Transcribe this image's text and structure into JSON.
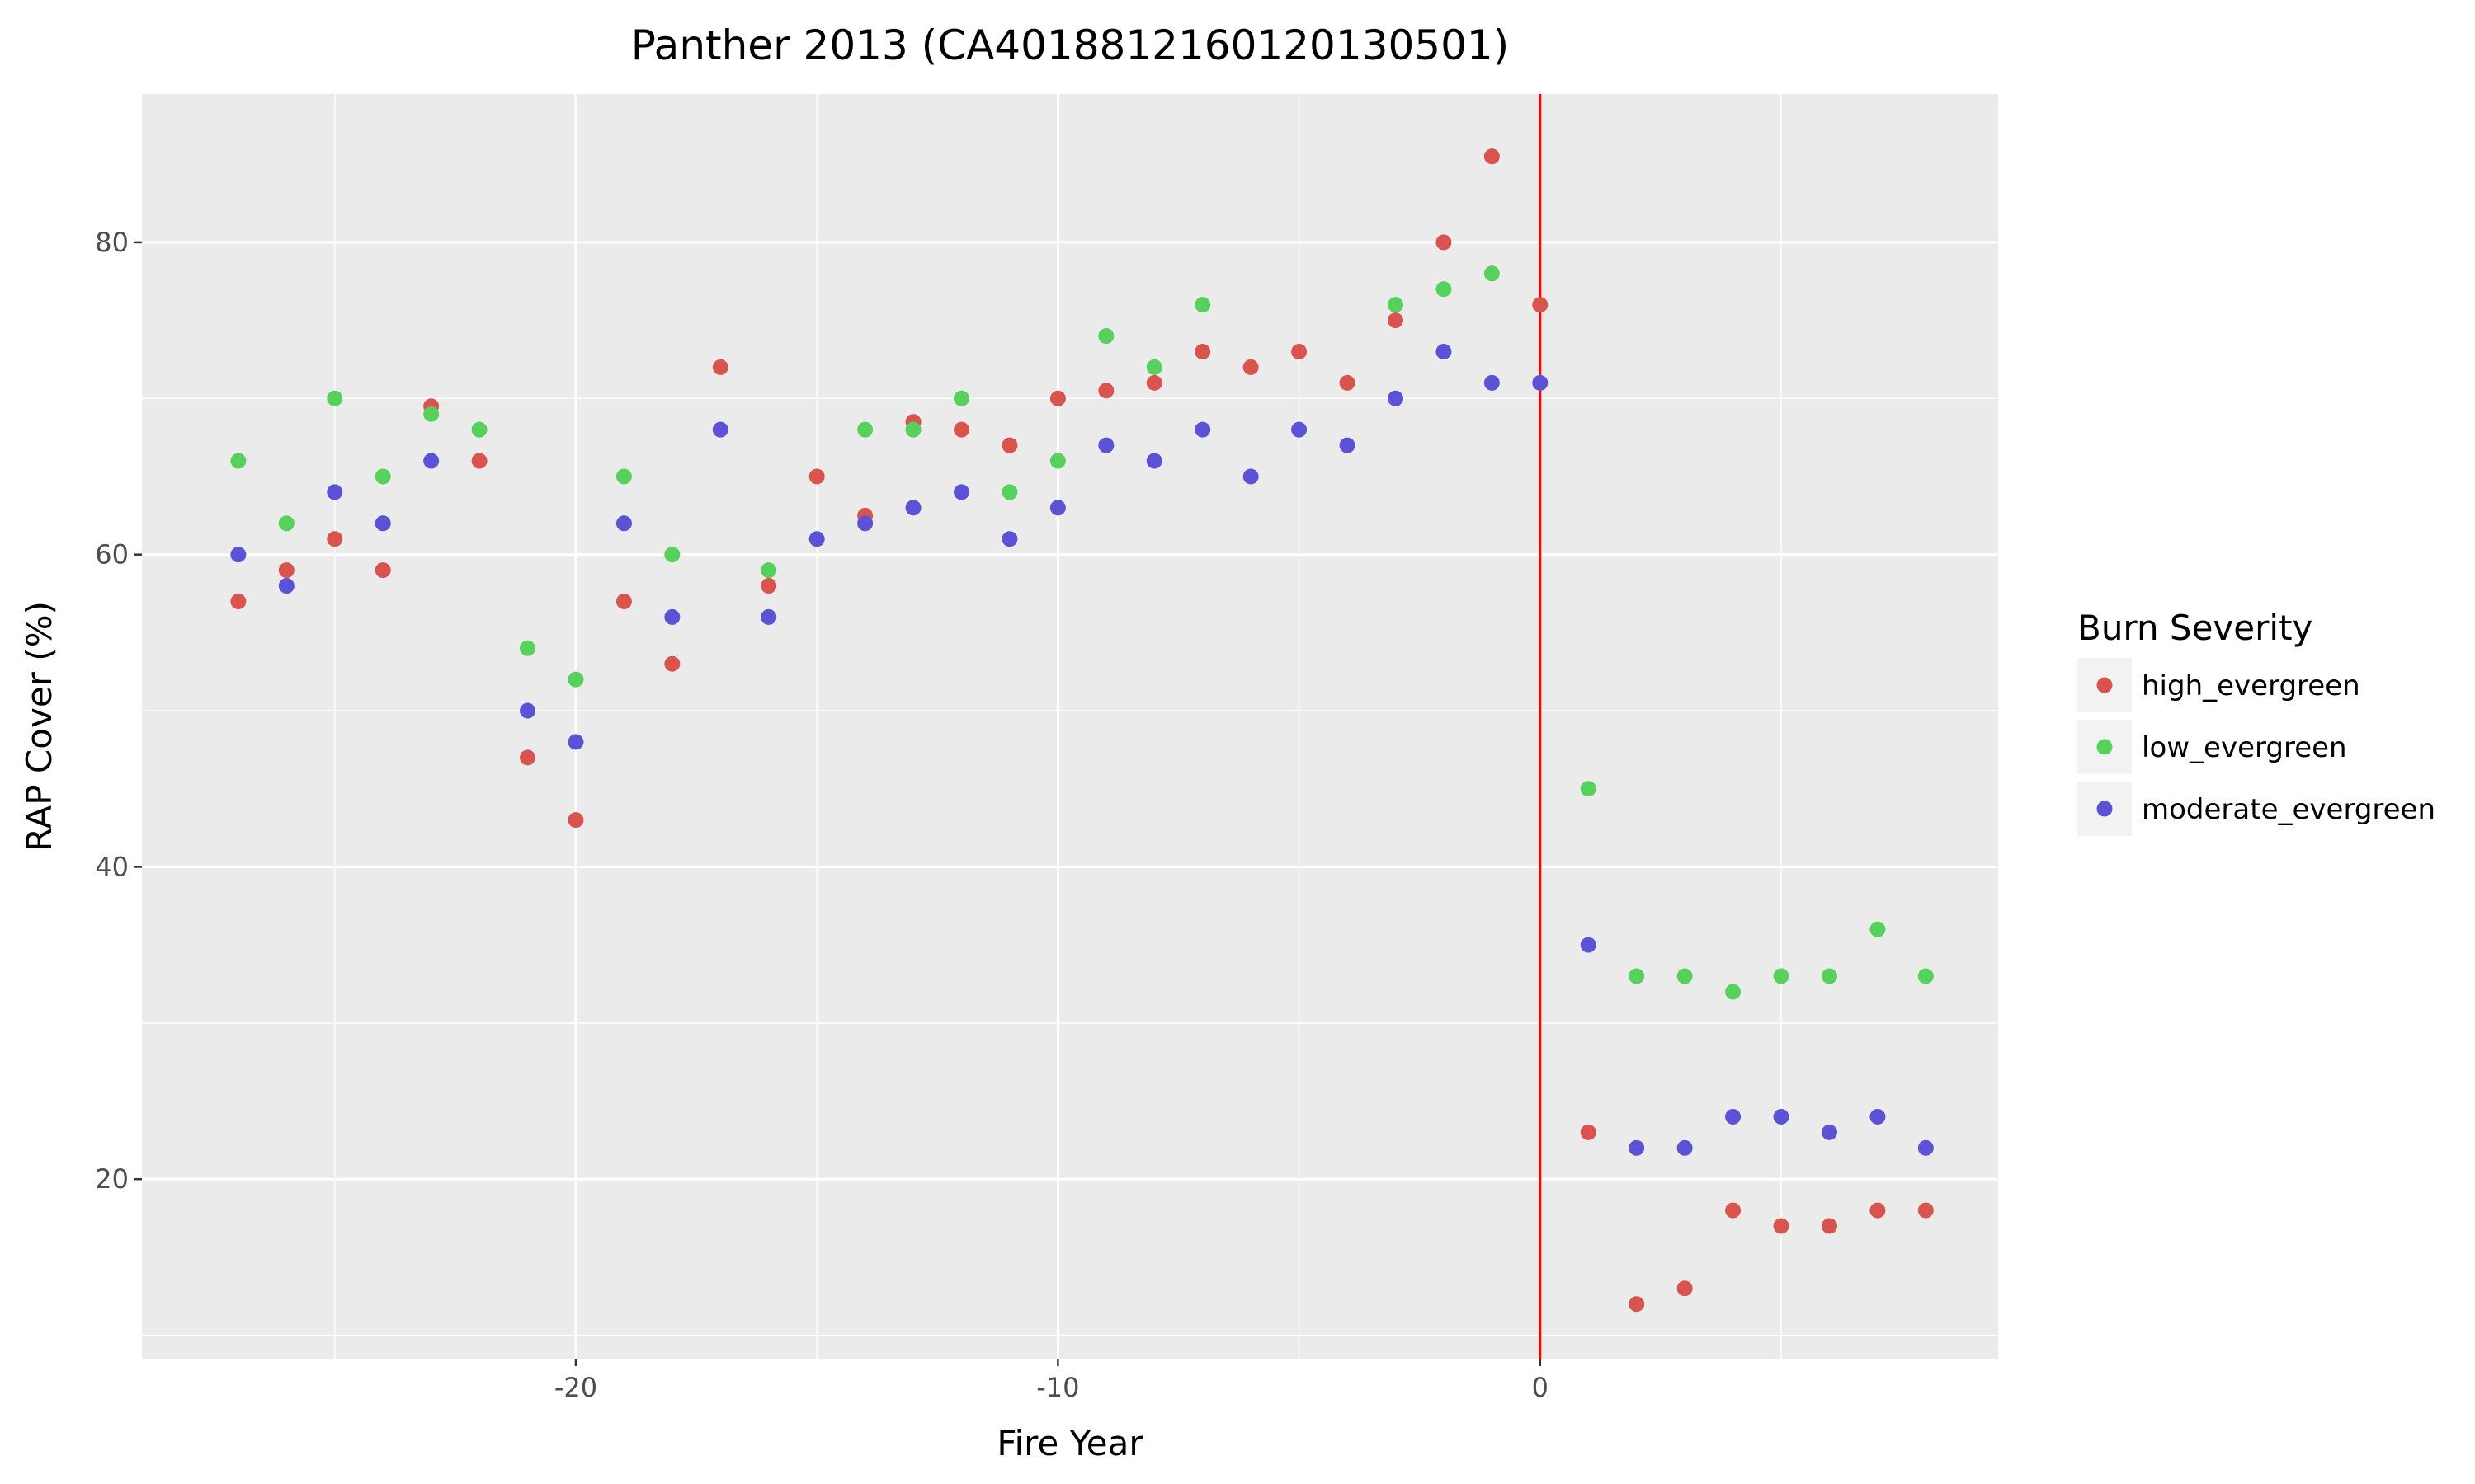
{
  "chart_data": {
    "type": "scatter",
    "title": "Panther 2013 (CA4018812160120130501)",
    "xlabel": "Fire Year",
    "ylabel": "RAP Cover (%)",
    "xlim": [
      -29,
      9.5
    ],
    "ylim": [
      8.5,
      89.5
    ],
    "x_ticks": [
      -20,
      -10,
      0
    ],
    "x_tick_labels": [
      "-20",
      "-10",
      "0"
    ],
    "y_ticks": [
      20,
      40,
      60,
      80
    ],
    "y_tick_labels": [
      "20",
      "40",
      "60",
      "80"
    ],
    "grid": true,
    "vline": {
      "x": 0,
      "color": "#ff0000"
    },
    "legend": {
      "title": "Burn Severity",
      "position": "right"
    },
    "x": [
      -27,
      -26,
      -25,
      -24,
      -23,
      -22,
      -21,
      -20,
      -19,
      -18,
      -17,
      -16,
      -15,
      -14,
      -13,
      -12,
      -11,
      -10,
      -9,
      -8,
      -7,
      -6,
      -5,
      -4,
      -3,
      -2,
      -1,
      0,
      1,
      2,
      3,
      4,
      5,
      6,
      7,
      8
    ],
    "series": [
      {
        "name": "high_evergreen",
        "color": "#d9534f",
        "values": [
          57,
          59,
          61,
          59,
          69.5,
          66,
          47,
          43,
          57,
          53,
          72,
          58,
          65,
          62.5,
          68.5,
          68,
          67,
          70,
          70.5,
          71,
          73,
          72,
          73,
          71,
          75,
          80,
          85.5,
          76,
          23,
          12,
          13,
          18,
          17,
          17,
          18,
          18
        ]
      },
      {
        "name": "low_evergreen",
        "color": "#55d15c",
        "values": [
          66,
          62,
          70,
          65,
          69,
          68,
          54,
          52,
          65,
          60,
          null,
          59,
          null,
          68,
          68,
          70,
          64,
          66,
          74,
          72,
          76,
          null,
          null,
          null,
          76,
          77,
          78,
          null,
          45,
          33,
          33,
          32,
          33,
          33,
          36,
          33
        ]
      },
      {
        "name": "moderate_evergreen",
        "color": "#5b52d6",
        "values": [
          60,
          58,
          64,
          62,
          66,
          null,
          50,
          48,
          62,
          56,
          68,
          56,
          61,
          62,
          63,
          64,
          61,
          63,
          67,
          66,
          68,
          65,
          68,
          67,
          70,
          73,
          71,
          71,
          35,
          22,
          22,
          24,
          24,
          23,
          24,
          22
        ]
      }
    ]
  }
}
